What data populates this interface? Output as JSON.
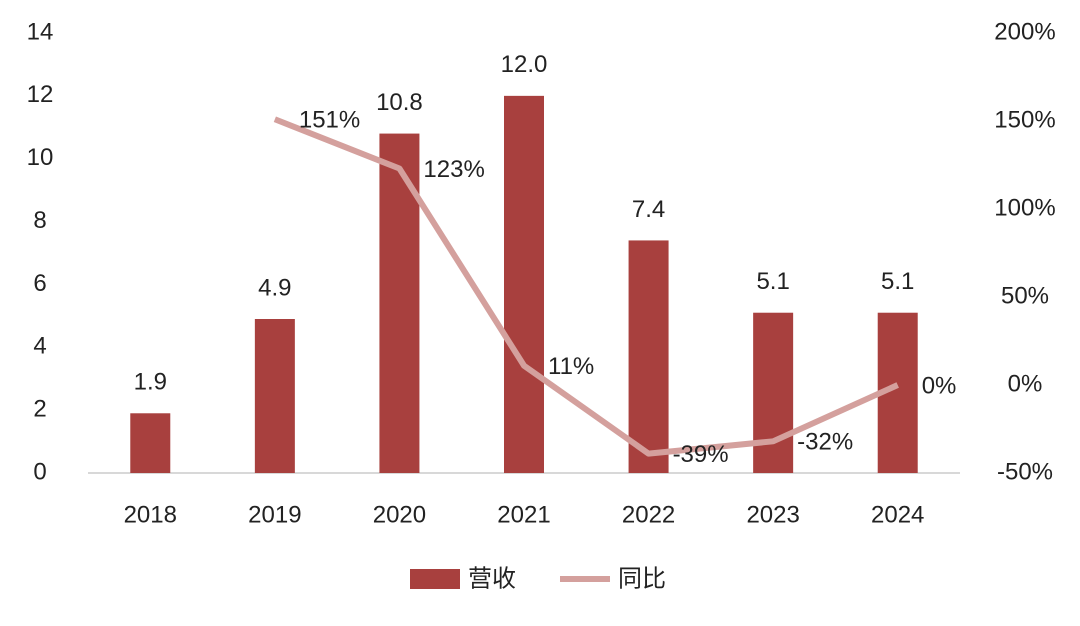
{
  "chart_data": {
    "type": "bar",
    "categories": [
      "2018",
      "2019",
      "2020",
      "2021",
      "2022",
      "2023",
      "2024"
    ],
    "series": [
      {
        "name": "营收",
        "type": "bar",
        "color": "#a8403e",
        "values": [
          1.9,
          4.9,
          10.8,
          12.0,
          7.4,
          5.1,
          5.1
        ],
        "value_labels": [
          "1.9",
          "4.9",
          "10.8",
          "12.0",
          "7.4",
          "5.1",
          "5.1"
        ]
      },
      {
        "name": "同比",
        "type": "line",
        "axis": "y2",
        "color": "#d4a09d",
        "values": [
          null,
          151,
          123,
          11,
          -39,
          -32,
          0
        ],
        "value_labels": [
          null,
          "151%",
          "123%",
          "11%",
          "-39%",
          "-32%",
          "0%"
        ]
      }
    ],
    "ylim": [
      0,
      14
    ],
    "yticks": [
      0,
      2,
      4,
      6,
      8,
      10,
      12,
      14
    ],
    "y2lim": [
      -50,
      200
    ],
    "y2ticks": [
      {
        "value": -50,
        "label": "-50%"
      },
      {
        "value": 0,
        "label": "0%"
      },
      {
        "value": 50,
        "label": "50%"
      },
      {
        "value": 100,
        "label": "100%"
      },
      {
        "value": 150,
        "label": "150%"
      },
      {
        "value": 200,
        "label": "200%"
      }
    ],
    "legend": "bottom"
  }
}
